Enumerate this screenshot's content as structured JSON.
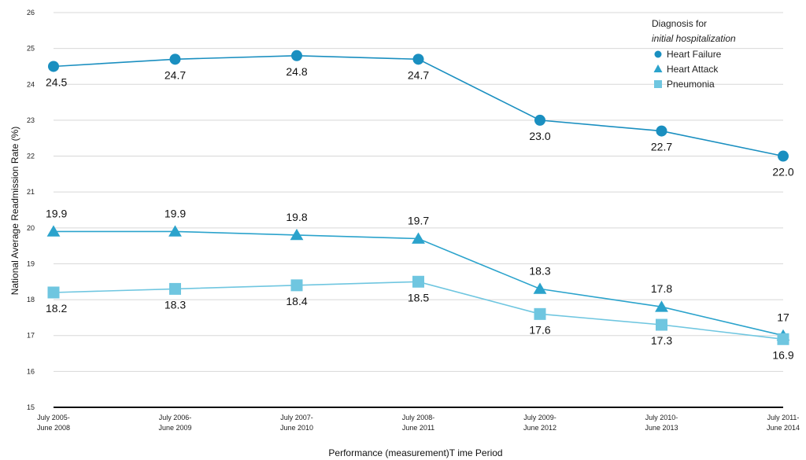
{
  "chart_data": {
    "type": "line",
    "xlabel": "Performance (measurement)T ime Period",
    "ylabel": "National Average Readmission Rate (%)",
    "ylim": [
      15,
      26
    ],
    "yticks": [
      "15",
      "16",
      "17",
      "18",
      "19",
      "20",
      "21",
      "22",
      "23",
      "24",
      "25",
      "26"
    ],
    "categories": [
      [
        "July 2005-",
        "June 2008"
      ],
      [
        "July 2006-",
        "June 2009"
      ],
      [
        "July 2007-",
        "June 2010"
      ],
      [
        "July 2008-",
        "June 2011"
      ],
      [
        "July 2009-",
        "June 2012"
      ],
      [
        "July 2010-",
        "June 2013"
      ],
      [
        "July 2011-",
        "June 2014"
      ]
    ],
    "grid": true,
    "legend": {
      "title_line1": "Diagnosis for",
      "title_line2": "initial hospitalization",
      "placement": "top-right"
    },
    "series": [
      {
        "name": "Heart Failure",
        "marker": "circle",
        "color": "#1a8fc0",
        "values": [
          24.5,
          24.7,
          24.8,
          24.7,
          23.0,
          22.7,
          22.0
        ],
        "labels": [
          "24.5",
          "24.7",
          "24.8",
          "24.7",
          "23.0",
          "22.7",
          "22.0"
        ],
        "label_position": [
          "below",
          "below",
          "below",
          "below",
          "below",
          "below",
          "below"
        ]
      },
      {
        "name": "Heart Attack",
        "marker": "triangle",
        "color": "#2ba3cc",
        "values": [
          19.9,
          19.9,
          19.8,
          19.7,
          18.3,
          17.8,
          17
        ],
        "labels": [
          "19.9",
          "19.9",
          "19.8",
          "19.7",
          "18.3",
          "17.8",
          "17"
        ],
        "label_position": [
          "above",
          "above",
          "above",
          "above",
          "above",
          "above",
          "above"
        ]
      },
      {
        "name": "Pneumonia",
        "marker": "square",
        "color": "#6fc6e0",
        "values": [
          18.2,
          18.3,
          18.4,
          18.5,
          17.6,
          17.3,
          16.9
        ],
        "labels": [
          "18.2",
          "18.3",
          "18.4",
          "18.5",
          "17.6",
          "17.3",
          "16.9"
        ],
        "label_position": [
          "below",
          "below",
          "below",
          "below",
          "below",
          "below",
          "below"
        ]
      }
    ]
  }
}
